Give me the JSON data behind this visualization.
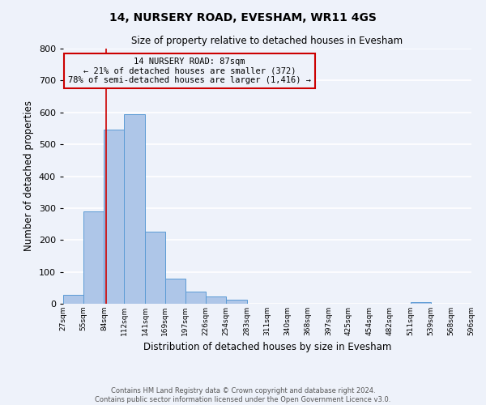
{
  "title": "14, NURSERY ROAD, EVESHAM, WR11 4GS",
  "subtitle": "Size of property relative to detached houses in Evesham",
  "xlabel": "Distribution of detached houses by size in Evesham",
  "ylabel": "Number of detached properties",
  "bin_edges": [
    27,
    55,
    84,
    112,
    141,
    169,
    197,
    226,
    254,
    283,
    311,
    340,
    368,
    397,
    425,
    454,
    482,
    511,
    539,
    568,
    596
  ],
  "bin_labels": [
    "27sqm",
    "55sqm",
    "84sqm",
    "112sqm",
    "141sqm",
    "169sqm",
    "197sqm",
    "226sqm",
    "254sqm",
    "283sqm",
    "311sqm",
    "340sqm",
    "368sqm",
    "397sqm",
    "425sqm",
    "454sqm",
    "482sqm",
    "511sqm",
    "539sqm",
    "568sqm",
    "596sqm"
  ],
  "bar_heights": [
    28,
    290,
    545,
    595,
    225,
    78,
    37,
    22,
    13,
    0,
    0,
    0,
    0,
    0,
    0,
    0,
    0,
    5,
    0,
    0
  ],
  "bar_color": "#aec6e8",
  "bar_edgecolor": "#5b9bd5",
  "ylim": [
    0,
    800
  ],
  "yticks": [
    0,
    100,
    200,
    300,
    400,
    500,
    600,
    700,
    800
  ],
  "property_value": 87,
  "vline_color": "#cc0000",
  "annotation_text_line1": "14 NURSERY ROAD: 87sqm",
  "annotation_text_line2": "← 21% of detached houses are smaller (372)",
  "annotation_text_line3": "78% of semi-detached houses are larger (1,416) →",
  "annotation_box_color": "#cc0000",
  "footer_line1": "Contains HM Land Registry data © Crown copyright and database right 2024.",
  "footer_line2": "Contains public sector information licensed under the Open Government Licence v3.0.",
  "background_color": "#eef2fa",
  "grid_color": "#ffffff"
}
